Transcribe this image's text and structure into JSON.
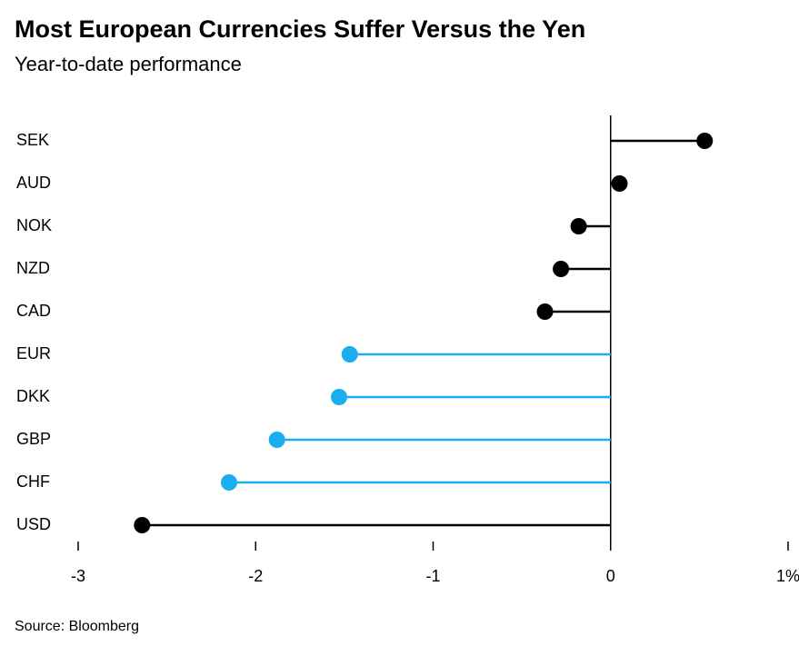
{
  "chart_data": {
    "type": "lollipop",
    "title": "Most European Currencies Suffer Versus the Yen",
    "subtitle": "Year-to-date performance",
    "source": "Source: Bloomberg",
    "categories": [
      "SEK",
      "AUD",
      "NOK",
      "NZD",
      "CAD",
      "EUR",
      "DKK",
      "GBP",
      "CHF",
      "USD"
    ],
    "values": [
      0.53,
      0.05,
      -0.18,
      -0.28,
      -0.37,
      -1.47,
      -1.53,
      -1.88,
      -2.15,
      -2.64
    ],
    "colors": [
      "#000000",
      "#000000",
      "#000000",
      "#000000",
      "#000000",
      "#1aaef0",
      "#1aaef0",
      "#1aaef0",
      "#1aaef0",
      "#000000"
    ],
    "xlim": [
      -3,
      1
    ],
    "xticks": [
      -3,
      -2,
      -1,
      0,
      {
        "value": 1,
        "label": "1%"
      }
    ]
  }
}
